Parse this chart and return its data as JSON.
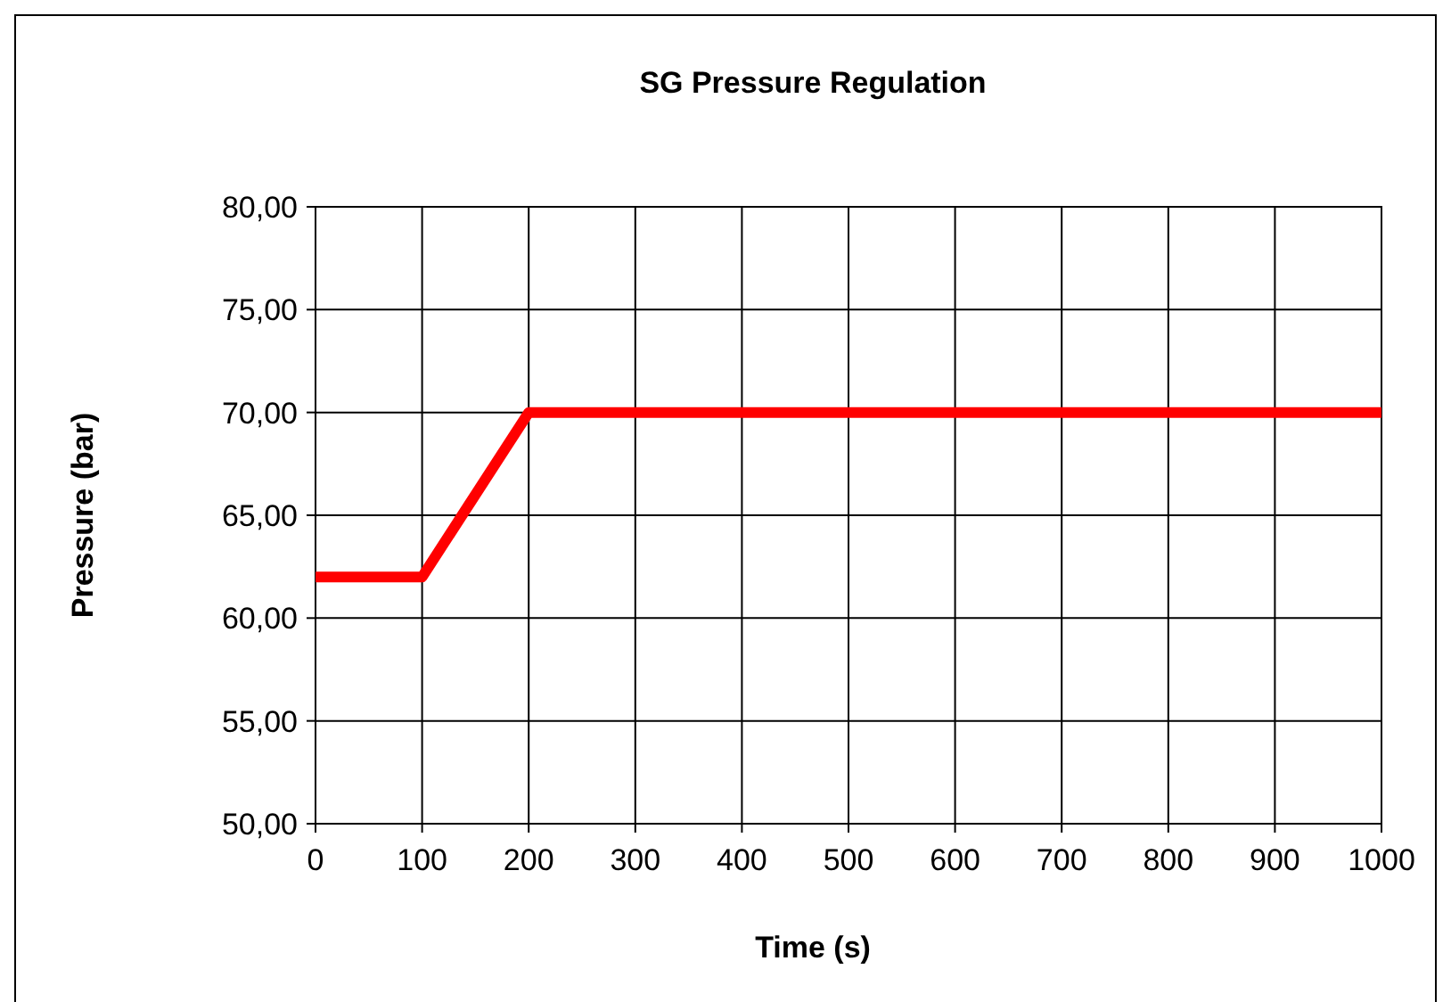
{
  "chart_data": {
    "type": "line",
    "title": "SG Pressure Regulation",
    "xlabel": "Time (s)",
    "ylabel": "Pressure (bar)",
    "series": [
      {
        "color": "#ff0000",
        "x": [
          0,
          100,
          200,
          1000
        ],
        "values": [
          62,
          62,
          70,
          70
        ]
      }
    ],
    "xlim": [
      0,
      1000
    ],
    "xticks": [
      0,
      100,
      200,
      300,
      400,
      500,
      600,
      700,
      800,
      900,
      1000
    ],
    "ylim": [
      50,
      80
    ],
    "yticks": [
      {
        "value": 50,
        "label": "50,00"
      },
      {
        "value": 55,
        "label": "55,00"
      },
      {
        "value": 60,
        "label": "60,00"
      },
      {
        "value": 65,
        "label": "65,00"
      },
      {
        "value": 70,
        "label": "70,00"
      },
      {
        "value": 75,
        "label": "75,00"
      },
      {
        "value": 80,
        "label": "80,00"
      }
    ],
    "grid": true,
    "marker": "none",
    "line_style": "solid"
  }
}
